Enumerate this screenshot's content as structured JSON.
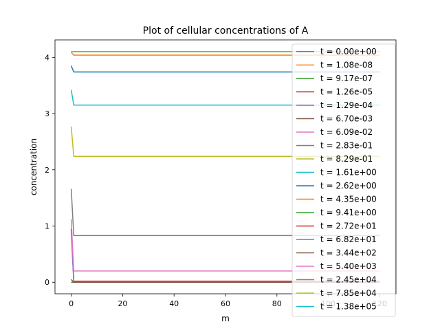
{
  "chart_data": {
    "type": "line",
    "title": "Plot of cellular concentrations of A",
    "xlabel": "m",
    "ylabel": "concentration",
    "xlim": [
      -6.3,
      126.3
    ],
    "ylim": [
      -0.205,
      4.31
    ],
    "xticks": [
      0,
      20,
      40,
      60,
      80,
      100,
      120
    ],
    "yticks": [
      0,
      1,
      2,
      3,
      4
    ],
    "grid": false,
    "legend_position": "right",
    "colors": [
      "#1f77b4",
      "#ff7f0e",
      "#2ca02c",
      "#d62728",
      "#9467bd",
      "#8c564b",
      "#e377c2",
      "#7f7f7f",
      "#bcbd22",
      "#17becf"
    ],
    "x_end": 120,
    "series": [
      {
        "name": "t = 0.00e+00",
        "start": [
          0,
          4.1
        ],
        "plateau": [
          1,
          4.1
        ]
      },
      {
        "name": "t = 1.08e-08",
        "start": [
          0,
          4.09
        ],
        "plateau": [
          1,
          4.04
        ]
      },
      {
        "name": "t = 9.17e-07",
        "start": [
          0,
          4.1
        ],
        "plateau": [
          1,
          4.1
        ]
      },
      {
        "name": "t = 1.26e-05",
        "start": [
          0,
          0.0
        ],
        "plateau": [
          1,
          0.0
        ]
      },
      {
        "name": "t = 1.29e-04",
        "start": [
          0,
          0.0
        ],
        "plateau": [
          1,
          0.0
        ]
      },
      {
        "name": "t = 6.70e-03",
        "start": [
          0,
          0.0
        ],
        "plateau": [
          1,
          0.0
        ]
      },
      {
        "name": "t = 6.09e-02",
        "start": [
          0,
          0.0
        ],
        "plateau": [
          1,
          0.0
        ]
      },
      {
        "name": "t = 2.83e-01",
        "start": [
          0,
          0.0
        ],
        "plateau": [
          1,
          0.0
        ]
      },
      {
        "name": "t = 8.29e-01",
        "start": [
          0,
          0.0
        ],
        "plateau": [
          1,
          0.0
        ]
      },
      {
        "name": "t = 1.61e+00",
        "start": [
          0,
          0.0
        ],
        "plateau": [
          1,
          0.0
        ]
      },
      {
        "name": "t = 2.62e+00",
        "start": [
          0,
          3.85
        ],
        "plateau": [
          1,
          3.74
        ]
      },
      {
        "name": "t = 4.35e+00",
        "start": [
          0,
          0.0
        ],
        "plateau": [
          1,
          0.0
        ]
      },
      {
        "name": "t = 9.41e+00",
        "start": [
          0,
          0.0
        ],
        "plateau": [
          1,
          0.0
        ]
      },
      {
        "name": "t = 2.72e+01",
        "start": [
          0,
          0.95
        ],
        "plateau": [
          1,
          0.02
        ]
      },
      {
        "name": "t = 6.82e+01",
        "start": [
          0,
          0.9
        ],
        "plateau": [
          1,
          0.01
        ]
      },
      {
        "name": "t = 3.44e+02",
        "start": [
          0,
          0.05
        ],
        "plateau": [
          1,
          0.0
        ]
      },
      {
        "name": "t = 5.40e+03",
        "start": [
          0,
          1.12
        ],
        "plateau": [
          1,
          0.2
        ]
      },
      {
        "name": "t = 2.45e+04",
        "start": [
          0,
          1.66
        ],
        "plateau": [
          1,
          0.83
        ]
      },
      {
        "name": "t = 7.85e+04",
        "start": [
          0,
          2.77
        ],
        "plateau": [
          1,
          2.24
        ]
      },
      {
        "name": "t = 1.38e+05",
        "start": [
          0,
          3.42
        ],
        "plateau": [
          1,
          3.15
        ]
      }
    ]
  }
}
